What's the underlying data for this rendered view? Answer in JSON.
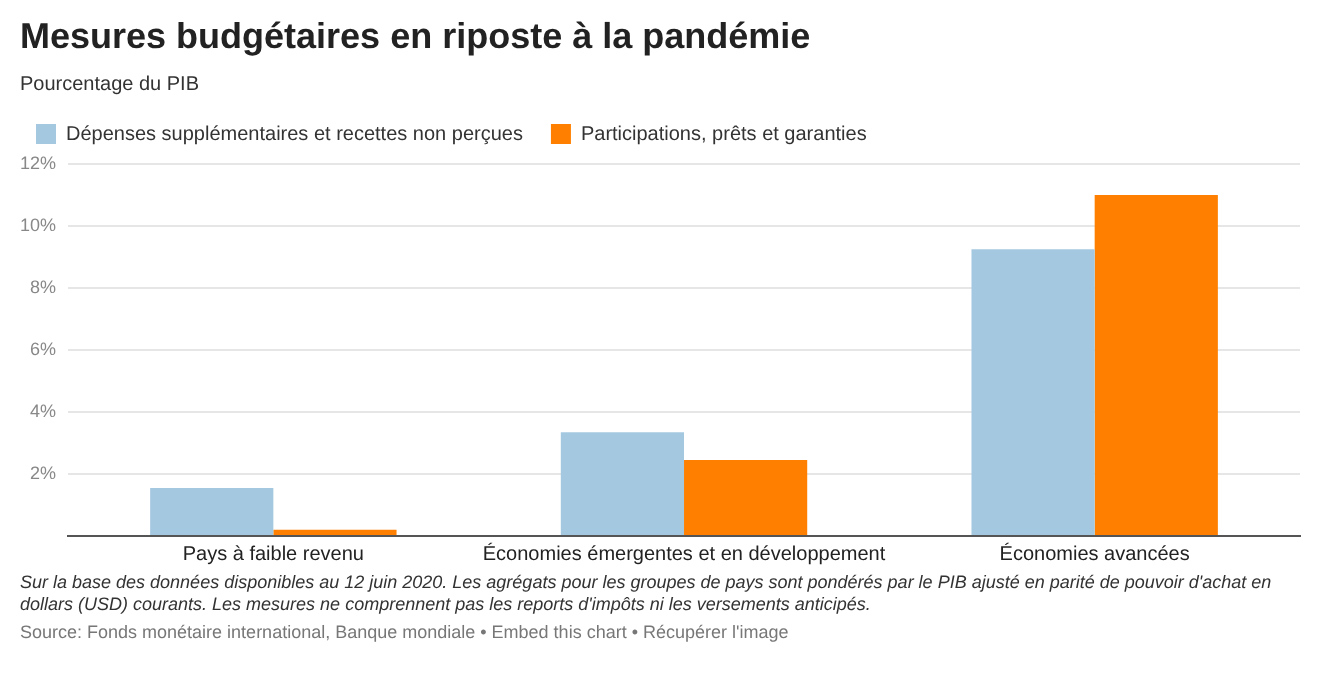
{
  "chart_data": {
    "type": "bar",
    "title": "Mesures budgétaires en riposte à la pandémie",
    "subtitle": "Pourcentage du PIB",
    "categories": [
      "Pays à faible revenu",
      "Économies émergentes et en développement",
      "Économies avancées"
    ],
    "series": [
      {
        "name": "Dépenses supplémentaires et recettes non perçues",
        "color": "#a3c8e0",
        "values": [
          1.55,
          3.35,
          9.25
        ]
      },
      {
        "name": "Participations, prêts et garanties",
        "color": "#ff8000",
        "values": [
          0.2,
          2.45,
          11
        ]
      }
    ],
    "ylim": [
      0,
      12
    ],
    "yticks": [
      {
        "value": 0,
        "label": null
      },
      {
        "value": 2,
        "label": "2%"
      },
      {
        "value": 4,
        "label": "4%"
      },
      {
        "value": 6,
        "label": "6%"
      },
      {
        "value": 8,
        "label": "8%"
      },
      {
        "value": 10,
        "label": "10%"
      },
      {
        "value": 12,
        "label": "12%"
      }
    ],
    "grid": "y",
    "legend": "top left",
    "annotations": [
      "Sur la base des données disponibles au 12 juin 2020. Les agrégats pour les groupes de pays sont pondérés par le PIB ajusté en parité de pouvoir d'achat en dollars (USD) courants. Les mesures ne comprennent pas les reports d'impôts ni les versements anticipés.",
      "Source: Fonds monétaire international, Banque mondiale • Embed this chart • Récupérer l'image"
    ]
  }
}
